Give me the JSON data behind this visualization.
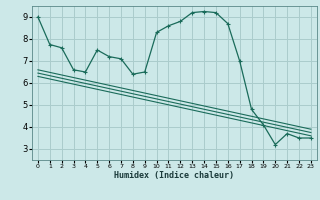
{
  "main_x": [
    0,
    1,
    2,
    3,
    4,
    5,
    6,
    7,
    8,
    9,
    10,
    11,
    12,
    13,
    14,
    15,
    16,
    17,
    18,
    19,
    20,
    21,
    22,
    23
  ],
  "main_y": [
    9.0,
    7.75,
    7.6,
    6.6,
    6.5,
    7.5,
    7.2,
    7.1,
    6.4,
    6.5,
    8.3,
    8.6,
    8.8,
    9.2,
    9.25,
    9.2,
    8.7,
    7.0,
    4.8,
    4.1,
    3.2,
    3.7,
    3.5,
    3.5
  ],
  "reg_lines": [
    {
      "x0": 0,
      "y0": 6.6,
      "x1": 23,
      "y1": 3.9
    },
    {
      "x0": 0,
      "y0": 6.45,
      "x1": 23,
      "y1": 3.75
    },
    {
      "x0": 0,
      "y0": 6.3,
      "x1": 23,
      "y1": 3.6
    }
  ],
  "line_color": "#1a6b5a",
  "bg_color": "#cce8e8",
  "grid_color": "#aacccc",
  "xlabel": "Humidex (Indice chaleur)",
  "xlim": [
    -0.5,
    23.5
  ],
  "ylim": [
    2.5,
    9.5
  ],
  "yticks": [
    3,
    4,
    5,
    6,
    7,
    8,
    9
  ],
  "xticks": [
    0,
    1,
    2,
    3,
    4,
    5,
    6,
    7,
    8,
    9,
    10,
    11,
    12,
    13,
    14,
    15,
    16,
    17,
    18,
    19,
    20,
    21,
    22,
    23
  ]
}
